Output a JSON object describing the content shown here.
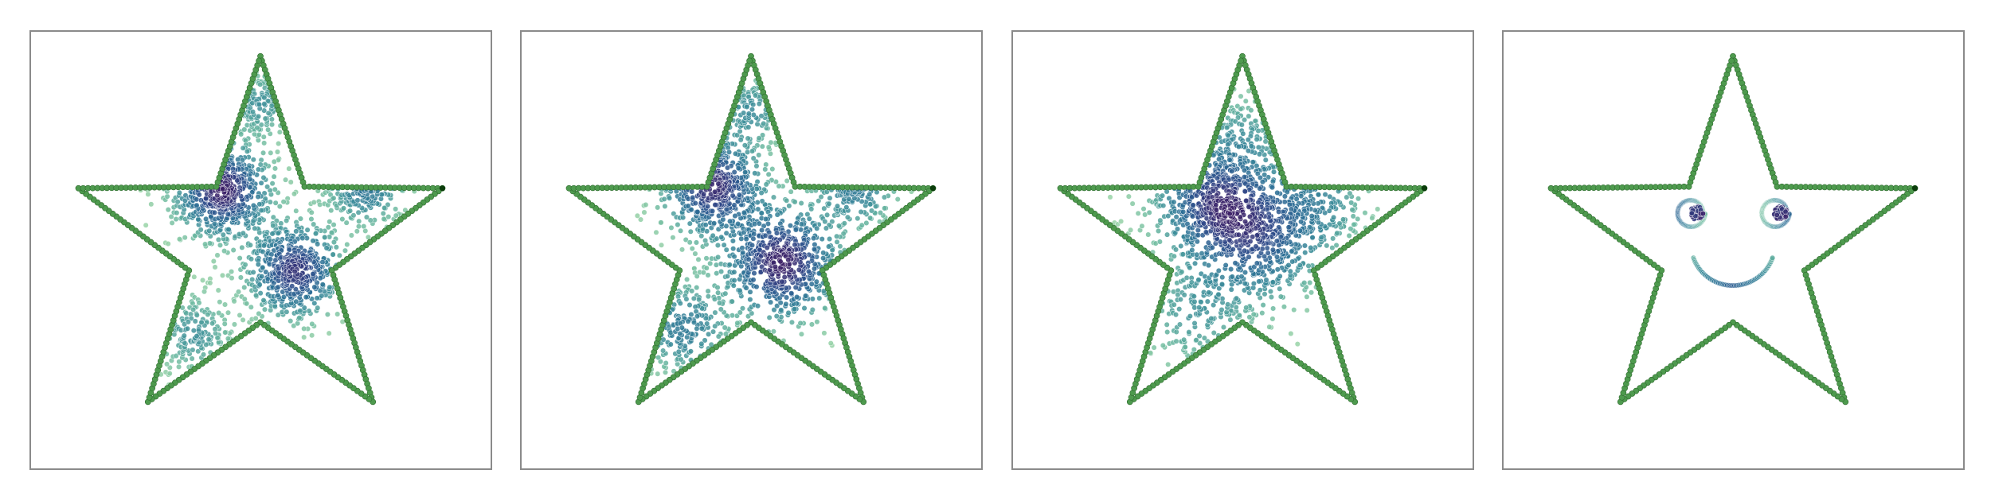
{
  "chart_data": [
    {
      "type": "scatter",
      "grid": false,
      "axes_visible": false,
      "outline": {
        "shape": "five-pointed star",
        "color": "#4e9a4e"
      },
      "colormap": [
        "#9ed6a8",
        "#6ab8a0",
        "#3b8c9a",
        "#2c6e95",
        "#2e4a8a",
        "#3b1f66"
      ],
      "clusters": [
        {
          "name": "upper-left",
          "center": [
            -0.2,
            0.3
          ],
          "weight": 0.34,
          "spread": 0.14
        },
        {
          "name": "center-right",
          "center": [
            0.18,
            -0.12
          ],
          "weight": 0.3,
          "spread": 0.14
        },
        {
          "name": "right-arm",
          "center": [
            0.55,
            0.32
          ],
          "weight": 0.16,
          "spread": 0.12
        },
        {
          "name": "bottom-left",
          "center": [
            -0.35,
            -0.45
          ],
          "weight": 0.1,
          "spread": 0.12
        },
        {
          "name": "top-point",
          "center": [
            0.0,
            0.75
          ],
          "weight": 0.1,
          "spread": 0.1
        }
      ]
    },
    {
      "type": "scatter",
      "grid": false,
      "axes_visible": false,
      "outline": {
        "shape": "five-pointed star",
        "color": "#4e9a4e"
      },
      "colormap": [
        "#9ed6a8",
        "#6ab8a0",
        "#3b8c9a",
        "#2c6e95",
        "#2e4a8a",
        "#3b1f66"
      ],
      "clusters": [
        {
          "name": "upper-left",
          "center": [
            -0.2,
            0.32
          ],
          "weight": 0.3,
          "spread": 0.15
        },
        {
          "name": "center-right",
          "center": [
            0.16,
            -0.08
          ],
          "weight": 0.32,
          "spread": 0.17
        },
        {
          "name": "right-arm",
          "center": [
            0.55,
            0.32
          ],
          "weight": 0.14,
          "spread": 0.13
        },
        {
          "name": "bottom-left",
          "center": [
            -0.35,
            -0.42
          ],
          "weight": 0.14,
          "spread": 0.14
        },
        {
          "name": "top-point",
          "center": [
            0.0,
            0.72
          ],
          "weight": 0.1,
          "spread": 0.11
        }
      ]
    },
    {
      "type": "scatter",
      "grid": false,
      "axes_visible": false,
      "outline": {
        "shape": "five-pointed star",
        "color": "#4e9a4e"
      },
      "colormap": [
        "#9ed6a8",
        "#6ab8a0",
        "#3b8c9a",
        "#2c6e95",
        "#2e4a8a",
        "#3b1f66"
      ],
      "clusters": [
        {
          "name": "upper-left",
          "center": [
            -0.15,
            0.25
          ],
          "weight": 0.34,
          "spread": 0.18
        },
        {
          "name": "center",
          "center": [
            0.08,
            0.05
          ],
          "weight": 0.3,
          "spread": 0.2
        },
        {
          "name": "right-arm",
          "center": [
            0.4,
            0.25
          ],
          "weight": 0.14,
          "spread": 0.16
        },
        {
          "name": "bottom-left",
          "center": [
            -0.25,
            -0.35
          ],
          "weight": 0.12,
          "spread": 0.17
        },
        {
          "name": "top-point",
          "center": [
            0.0,
            0.6
          ],
          "weight": 0.1,
          "spread": 0.13
        }
      ]
    },
    {
      "type": "scatter",
      "grid": false,
      "axes_visible": false,
      "outline": {
        "shape": "five-pointed star",
        "color": "#4e9a4e"
      },
      "colormap": [
        "#9ed6a8",
        "#6ab8a0",
        "#3b8c9a",
        "#2c6e95",
        "#2e4a8a",
        "#3b1f66"
      ],
      "face": {
        "left_eye": {
          "center": [
            -0.22,
            0.18
          ],
          "ring_radius": 0.075,
          "pupil_radius": 0.035
        },
        "right_eye": {
          "center": [
            0.22,
            0.18
          ],
          "ring_radius": 0.075,
          "pupil_radius": 0.035
        },
        "smile": {
          "center": [
            0.0,
            0.02
          ],
          "radius": 0.22,
          "arc_degrees": [
            200,
            340
          ]
        }
      }
    }
  ]
}
